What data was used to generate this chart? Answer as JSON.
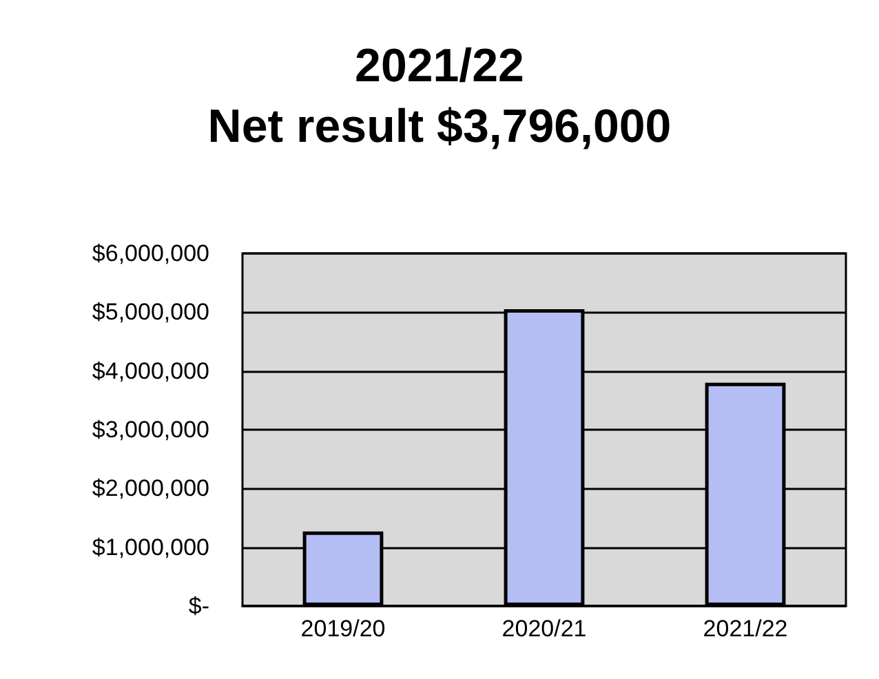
{
  "chart_data": {
    "type": "bar",
    "title": "2021/22",
    "subtitle": "Net result $3,796,000",
    "categories": [
      "2019/20",
      "2020/21",
      "2021/22"
    ],
    "values": [
      1270000,
      5050000,
      3800000
    ],
    "color": "#b4bef5",
    "ylim": [
      0,
      6000000
    ],
    "yticks": [
      {
        "value": 0,
        "label": "$-"
      },
      {
        "value": 1000000,
        "label": "$1,000,000"
      },
      {
        "value": 2000000,
        "label": "$2,000,000"
      },
      {
        "value": 3000000,
        "label": "$3,000,000"
      },
      {
        "value": 4000000,
        "label": "$4,000,000"
      },
      {
        "value": 5000000,
        "label": "$5,000,000"
      },
      {
        "value": 6000000,
        "label": "$6,000,000"
      }
    ],
    "grid": "y"
  }
}
